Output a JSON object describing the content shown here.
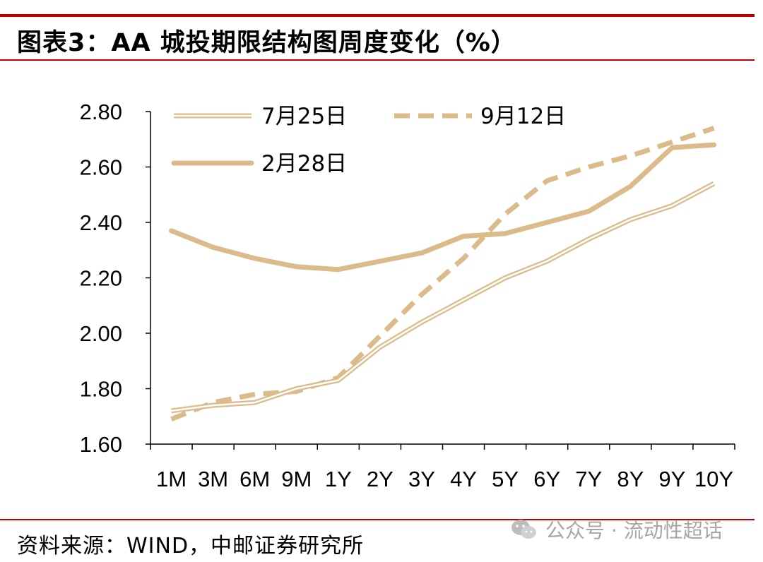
{
  "header": {
    "title": "图表3：AA 城投期限结构图周度变化（%）"
  },
  "footer": {
    "source": "资料来源：WIND，中邮证券研究所"
  },
  "watermark": {
    "text": "公众号 · 流动性超话",
    "icon": "wechat-icon"
  },
  "colors": {
    "rule": "#c00000",
    "series": "#dcbb8a",
    "axis": "#000000"
  },
  "chart_data": {
    "type": "line",
    "title": "",
    "xlabel": "",
    "ylabel": "",
    "categories": [
      "1M",
      "3M",
      "6M",
      "9M",
      "1Y",
      "2Y",
      "3Y",
      "4Y",
      "5Y",
      "6Y",
      "7Y",
      "8Y",
      "9Y",
      "10Y"
    ],
    "ylim": [
      1.6,
      2.8
    ],
    "yticks": [
      "1.60",
      "1.80",
      "2.00",
      "2.20",
      "2.40",
      "2.60",
      "2.80"
    ],
    "legend_position": "top",
    "series": [
      {
        "name": "7月25日",
        "style": "double",
        "values": [
          1.72,
          1.74,
          1.75,
          1.8,
          1.83,
          1.95,
          2.04,
          2.12,
          2.2,
          2.26,
          2.34,
          2.41,
          2.46,
          2.54
        ]
      },
      {
        "name": "9月12日",
        "style": "dashed",
        "values": [
          1.69,
          1.75,
          1.78,
          1.79,
          1.84,
          1.99,
          2.14,
          2.27,
          2.43,
          2.55,
          2.6,
          2.64,
          2.69,
          2.74
        ]
      },
      {
        "name": "2月28日",
        "style": "solid",
        "values": [
          2.37,
          2.31,
          2.27,
          2.24,
          2.23,
          2.26,
          2.29,
          2.35,
          2.36,
          2.4,
          2.44,
          2.53,
          2.67,
          2.68
        ]
      }
    ]
  }
}
